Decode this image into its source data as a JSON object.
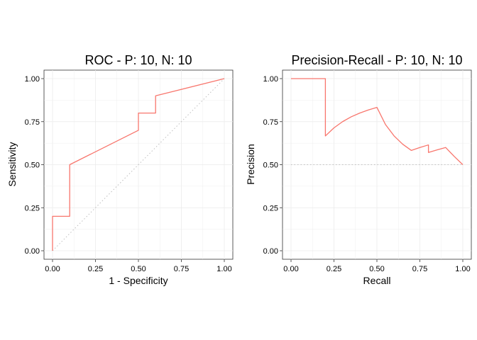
{
  "chart_data": [
    {
      "type": "line",
      "title": "ROC - P: 10, N: 10",
      "xlabel": "1 - Specificity",
      "ylabel": "Sensitivity",
      "xlim": [
        0,
        1
      ],
      "ylim": [
        0,
        1
      ],
      "xticks": [
        "0.00",
        "0.25",
        "0.50",
        "0.75",
        "1.00"
      ],
      "yticks": [
        "0.00",
        "0.25",
        "0.50",
        "0.75",
        "1.00"
      ],
      "grid": true,
      "series_color": "#F8766D",
      "reference_color": "#BEBEBE",
      "series": [
        {
          "x": [
            0,
            0,
            0.1,
            0.1,
            0.5,
            0.5,
            0.6,
            0.6,
            1.0
          ],
          "y": [
            0,
            0.2,
            0.2,
            0.5,
            0.7,
            0.8,
            0.8,
            0.9,
            1.0
          ]
        }
      ],
      "reference_line": {
        "x": [
          0,
          1
        ],
        "y": [
          0,
          1
        ],
        "style": "dotted"
      }
    },
    {
      "type": "line",
      "title": "Precision-Recall - P: 10, N: 10",
      "xlabel": "Recall",
      "ylabel": "Precision",
      "xlim": [
        0,
        1
      ],
      "ylim": [
        0,
        1
      ],
      "xticks": [
        "0.00",
        "0.25",
        "0.50",
        "0.75",
        "1.00"
      ],
      "yticks": [
        "0.00",
        "0.25",
        "0.50",
        "0.75",
        "1.00"
      ],
      "grid": true,
      "series_color": "#F8766D",
      "reference_color": "#BEBEBE",
      "series": [
        {
          "x": [
            0,
            0.05,
            0.1,
            0.15,
            0.2,
            0.2,
            0.25,
            0.3,
            0.35,
            0.4,
            0.45,
            0.5,
            0.55,
            0.6,
            0.65,
            0.7,
            0.75,
            0.8,
            0.8,
            0.85,
            0.9,
            0.95,
            1.0
          ],
          "y": [
            1.0,
            1.0,
            1.0,
            1.0,
            1.0,
            0.667,
            0.714,
            0.75,
            0.778,
            0.8,
            0.818,
            0.833,
            0.733,
            0.667,
            0.619,
            0.583,
            0.6,
            0.615,
            0.571,
            0.586,
            0.6,
            0.548,
            0.5
          ]
        }
      ],
      "reference_line": {
        "x": [
          0,
          1
        ],
        "y": [
          0.5,
          0.5
        ],
        "style": "dotted"
      }
    }
  ]
}
